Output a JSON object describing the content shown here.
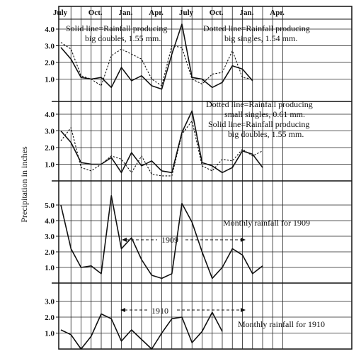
{
  "chart_data": {
    "type": "line",
    "ylabel": "Precipitation in inches",
    "month_labels": [
      "July",
      "Oct.",
      "Jan.",
      "Apr.",
      "July",
      "Oct.",
      "Jan.",
      "Apr."
    ],
    "x_months": [
      0,
      1,
      2,
      3,
      4,
      5,
      6,
      7,
      8,
      9,
      10,
      11,
      12,
      13,
      14,
      15,
      16,
      17,
      18,
      19,
      20,
      21,
      22
    ],
    "panels": [
      {
        "yticks": [
          "1.0",
          "2.0",
          "3.0",
          "4.0"
        ],
        "ylim": [
          0,
          4.6
        ],
        "annotations": [
          "Solid line=Rainfall producing",
          "big doubles, 1.55 mm.",
          "Dotted line=Rainfall producing",
          "big singles, 1.54 mm."
        ],
        "series": [
          {
            "style": "solid",
            "values": [
              2.9,
              2.2,
              1.1,
              1.0,
              1.1,
              0.5,
              1.7,
              0.9,
              1.2,
              0.6,
              0.4,
              2.5,
              4.3,
              1.1,
              1.0,
              0.5,
              0.8,
              1.8,
              1.6,
              0.9
            ]
          },
          {
            "style": "dotted",
            "values": [
              3.2,
              2.8,
              1.2,
              1.0,
              0.6,
              2.4,
              2.8,
              2.5,
              2.2,
              1.0,
              0.6,
              3.0,
              2.9,
              1.0,
              0.7,
              1.3,
              1.4,
              2.7,
              1.1,
              1.0
            ]
          }
        ]
      },
      {
        "yticks": [
          "1.0",
          "2.0",
          "3.0",
          "4.0"
        ],
        "ylim": [
          0,
          4.6
        ],
        "annotations": [
          "Dotted line=Rainfall producing",
          "small singles, 0.61 mm.",
          "Solid line=Rainfall producing",
          "big doubles, 1.55 mm."
        ],
        "series": [
          {
            "style": "solid",
            "values": [
              3.0,
              2.3,
              1.1,
              1.0,
              1.0,
              1.4,
              0.5,
              1.7,
              0.9,
              1.2,
              0.6,
              0.5,
              2.9,
              4.2,
              1.1,
              0.9,
              0.5,
              0.8,
              1.8,
              1.6,
              0.8
            ]
          },
          {
            "style": "dotted",
            "values": [
              2.4,
              3.2,
              0.8,
              0.6,
              1.0,
              1.5,
              1.3,
              0.5,
              1.5,
              0.4,
              0.3,
              0.3,
              2.8,
              3.6,
              0.9,
              0.6,
              1.3,
              1.2,
              1.9,
              1.5,
              1.8
            ]
          }
        ]
      },
      {
        "yticks": [
          "1.0",
          "2.0",
          "3.0",
          "4.0",
          "5.0"
        ],
        "ylim": [
          0,
          5.8
        ],
        "annotations": [
          "Monthly rainfall for 1909",
          "1909"
        ],
        "series": [
          {
            "style": "solid",
            "values": [
              5.0,
              2.2,
              1.0,
              1.1,
              0.6,
              5.6,
              2.2,
              2.9,
              1.5,
              0.5,
              0.3,
              0.6,
              5.1,
              3.9,
              2.0,
              0.3,
              1.0,
              2.2,
              1.8,
              0.6,
              1.1
            ]
          }
        ]
      },
      {
        "yticks": [
          "1.0",
          "2.0",
          "3.0"
        ],
        "ylim": [
          0,
          3.4
        ],
        "annotations": [
          "Monthly rainfall for 1910",
          "1910"
        ],
        "series": [
          {
            "style": "solid",
            "values": [
              1.2,
              0.9,
              0.0,
              0.8,
              2.2,
              1.9,
              0.5,
              1.2,
              0.6,
              0.0,
              1.0,
              1.9,
              2.0,
              0.4,
              1.1,
              2.3,
              1.1
            ]
          }
        ]
      }
    ]
  }
}
